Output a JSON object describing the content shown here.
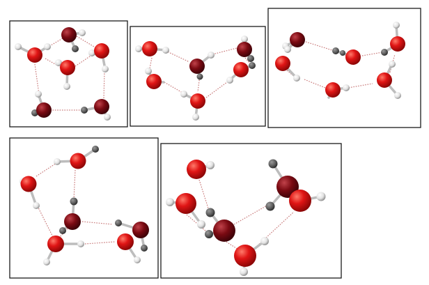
{
  "figure": {
    "panel_count": 5,
    "atom_colors": {
      "oxygen": "#e01515",
      "oxygen_dark": "#7a0a12",
      "hydrogen": "#e6e6e6",
      "hydrogen_dark": "#6a6a6a",
      "hydrogen_bond": "#c97a7a"
    },
    "panels": [
      {
        "id": 1,
        "molecule_count": 6
      },
      {
        "id": 2,
        "molecule_count": 6
      },
      {
        "id": 3,
        "molecule_count": 6
      },
      {
        "id": 4,
        "molecule_count": 6
      },
      {
        "id": 5,
        "molecule_count": 6
      }
    ]
  }
}
